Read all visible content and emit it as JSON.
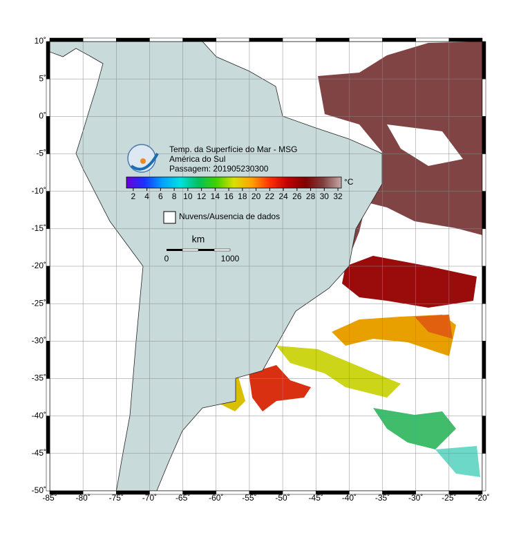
{
  "map": {
    "title_lines": [
      "Temp. da Superfície do Mar - MSG",
      "América do Sul",
      "Passagem: 201905230300"
    ],
    "colorbar": {
      "unit": "°C",
      "clim": [
        1,
        32.5
      ],
      "ticks": [
        2,
        4,
        6,
        8,
        10,
        12,
        14,
        16,
        18,
        20,
        22,
        24,
        26,
        28,
        30,
        32
      ],
      "colors": [
        "#6a00d8",
        "#1a30ff",
        "#00a0ff",
        "#00e0e0",
        "#00c060",
        "#40d000",
        "#d8e000",
        "#ffa000",
        "#ff3000",
        "#c00000",
        "#800000",
        "#804040",
        "#c8a8a8"
      ]
    },
    "legend_label": "Nuvens/Ausencia de dados",
    "scale_bar": {
      "unit": "km",
      "labels": [
        "0",
        "1000"
      ]
    },
    "lon_lim": [
      -85,
      -20
    ],
    "lat_lim": [
      -50,
      10
    ],
    "lon_ticks": [
      {
        "value": -85,
        "label": "-85˚"
      },
      {
        "value": -80,
        "label": "-80˚"
      },
      {
        "value": -75,
        "label": "-75˚"
      },
      {
        "value": -70,
        "label": "-70˚"
      },
      {
        "value": -65,
        "label": "-65˚"
      },
      {
        "value": -60,
        "label": "-60˚"
      },
      {
        "value": -55,
        "label": "-55˚"
      },
      {
        "value": -50,
        "label": "-50˚"
      },
      {
        "value": -45,
        "label": "-45˚"
      },
      {
        "value": -40,
        "label": "-40˚"
      },
      {
        "value": -35,
        "label": "-35˚"
      },
      {
        "value": -30,
        "label": "-30˚"
      },
      {
        "value": -25,
        "label": "-25˚"
      },
      {
        "value": -20,
        "label": "-20˚"
      }
    ],
    "lat_ticks": [
      {
        "value": 10,
        "label": "10˚"
      },
      {
        "value": 5,
        "label": "5˚"
      },
      {
        "value": 0,
        "label": "0˚"
      },
      {
        "value": -5,
        "label": "-5˚"
      },
      {
        "value": -10,
        "label": "-10˚"
      },
      {
        "value": -15,
        "label": "-15˚"
      },
      {
        "value": -20,
        "label": "-20˚"
      },
      {
        "value": -25,
        "label": "-25˚"
      },
      {
        "value": -30,
        "label": "-30˚"
      },
      {
        "value": -35,
        "label": "-35˚"
      },
      {
        "value": -40,
        "label": "-40˚"
      },
      {
        "value": -45,
        "label": "-45˚"
      },
      {
        "value": -50,
        "label": "-50˚"
      }
    ]
  }
}
